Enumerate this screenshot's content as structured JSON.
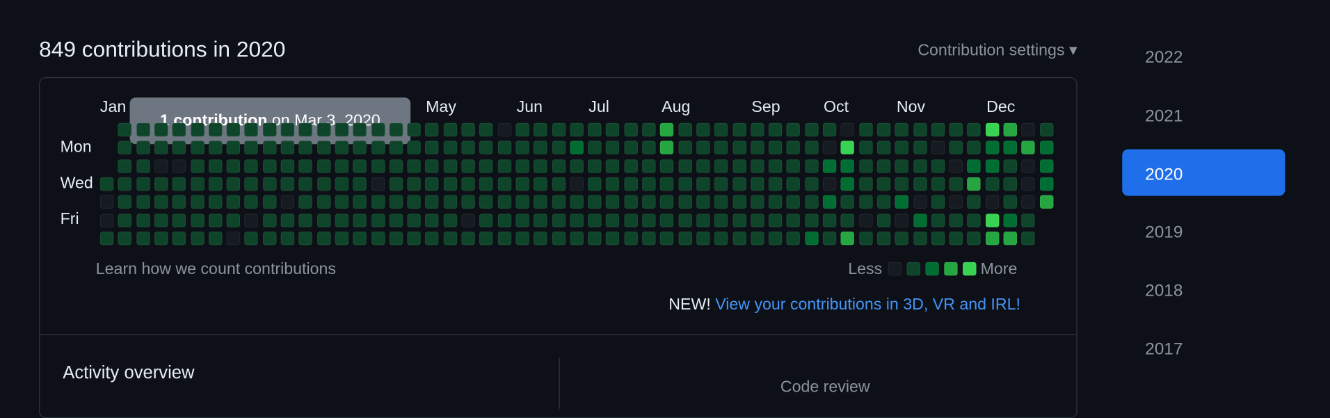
{
  "header": {
    "title": "849 contributions in 2020",
    "settings": "Contribution settings"
  },
  "calendar": {
    "months": [
      "Jan",
      "May",
      "Jun",
      "Jul",
      "Aug",
      "Sep",
      "Oct",
      "Nov",
      "Dec"
    ],
    "days": [
      "Mon",
      "Wed",
      "Fri"
    ],
    "level_colors": [
      "#161b22",
      "#0e4429",
      "#006d32",
      "#26a641",
      "#39d353"
    ],
    "levels": [
      [
        null,
        1,
        1,
        1,
        1,
        1,
        1,
        1,
        1,
        1,
        1,
        1,
        1,
        1,
        1,
        1,
        1,
        1,
        1,
        1,
        1,
        1,
        0,
        1,
        1,
        1,
        1,
        1,
        1,
        1,
        1,
        3,
        1,
        1,
        1,
        1,
        1,
        1,
        1,
        1,
        1,
        0,
        1,
        1,
        1,
        1,
        1,
        1,
        1,
        4,
        3,
        0,
        1
      ],
      [
        null,
        1,
        1,
        1,
        1,
        1,
        1,
        1,
        1,
        1,
        1,
        1,
        1,
        1,
        1,
        1,
        1,
        1,
        1,
        1,
        1,
        1,
        1,
        1,
        1,
        1,
        2,
        1,
        1,
        1,
        1,
        3,
        1,
        1,
        1,
        1,
        1,
        1,
        1,
        1,
        0,
        4,
        1,
        1,
        1,
        1,
        0,
        1,
        1,
        2,
        2,
        3,
        2
      ],
      [
        null,
        1,
        1,
        0,
        0,
        1,
        1,
        1,
        1,
        1,
        1,
        1,
        1,
        1,
        1,
        1,
        1,
        1,
        1,
        1,
        1,
        1,
        1,
        1,
        1,
        1,
        1,
        1,
        1,
        1,
        1,
        1,
        1,
        1,
        1,
        1,
        1,
        1,
        1,
        1,
        2,
        2,
        1,
        1,
        1,
        1,
        1,
        0,
        2,
        2,
        1,
        0,
        2
      ],
      [
        1,
        1,
        1,
        1,
        1,
        1,
        1,
        1,
        1,
        1,
        1,
        1,
        1,
        1,
        1,
        0,
        1,
        1,
        1,
        1,
        1,
        1,
        1,
        1,
        1,
        1,
        0,
        1,
        1,
        1,
        1,
        1,
        1,
        1,
        1,
        1,
        1,
        1,
        1,
        1,
        0,
        2,
        1,
        1,
        1,
        1,
        1,
        1,
        3,
        1,
        1,
        0,
        2
      ],
      [
        0,
        1,
        1,
        1,
        1,
        1,
        1,
        1,
        1,
        1,
        0,
        1,
        1,
        1,
        1,
        1,
        1,
        1,
        1,
        1,
        1,
        1,
        1,
        1,
        1,
        1,
        1,
        1,
        1,
        1,
        1,
        1,
        1,
        1,
        1,
        1,
        1,
        1,
        1,
        1,
        2,
        1,
        1,
        1,
        2,
        0,
        1,
        0,
        1,
        0,
        1,
        0,
        3
      ],
      [
        0,
        1,
        1,
        1,
        1,
        1,
        1,
        1,
        0,
        1,
        1,
        1,
        1,
        1,
        1,
        1,
        1,
        1,
        1,
        1,
        0,
        1,
        1,
        1,
        1,
        1,
        1,
        1,
        1,
        1,
        1,
        1,
        1,
        1,
        1,
        1,
        1,
        1,
        1,
        1,
        1,
        1,
        0,
        1,
        0,
        2,
        1,
        1,
        1,
        4,
        2,
        1,
        null
      ],
      [
        1,
        1,
        1,
        1,
        1,
        1,
        1,
        0,
        1,
        1,
        1,
        1,
        1,
        1,
        1,
        1,
        1,
        1,
        1,
        1,
        1,
        1,
        1,
        1,
        1,
        1,
        1,
        1,
        1,
        1,
        1,
        1,
        1,
        1,
        1,
        1,
        1,
        1,
        1,
        2,
        1,
        3,
        1,
        1,
        1,
        1,
        1,
        1,
        1,
        3,
        3,
        1,
        null
      ]
    ],
    "learn": "Learn how we count contributions",
    "less": "Less",
    "more": "More",
    "new": "NEW!",
    "link": "View your contributions in 3D, VR and IRL!"
  },
  "tooltip": {
    "count": "1 contribution",
    "date": "on Mar 3, 2020"
  },
  "activity": {
    "title": "Activity overview",
    "code_review": "Code review"
  },
  "years": [
    "2022",
    "2021",
    "2020",
    "2019",
    "2018",
    "2017"
  ],
  "selected_year": "2020"
}
